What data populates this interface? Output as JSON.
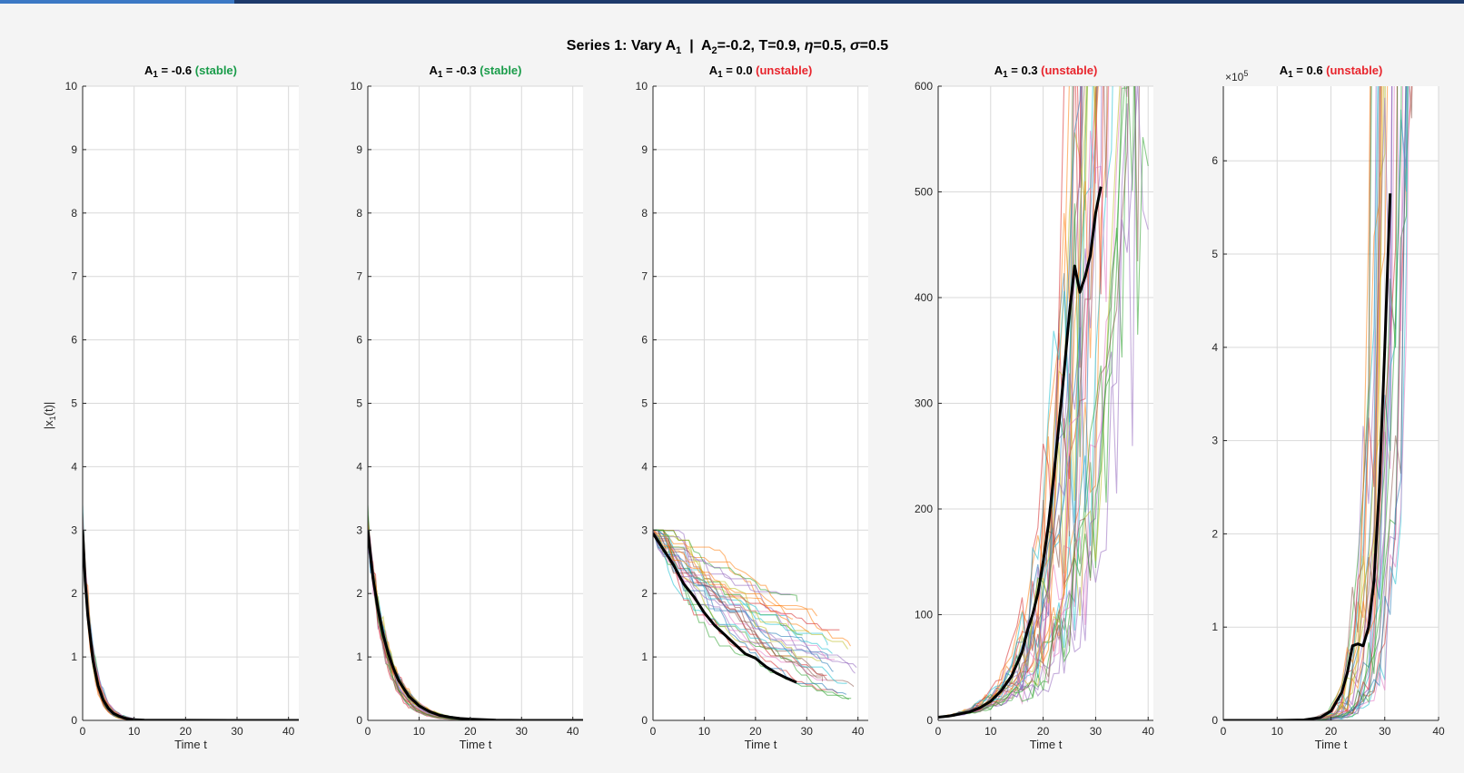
{
  "figure": {
    "title_prefix": "Series 1: Vary A",
    "title_sub": "1",
    "title_sep": "  |  A",
    "title_sub2": "2",
    "title_params": "=-0.2, T=0.9, ",
    "title_eta": "η",
    "title_eta_val": "=0.5, ",
    "title_sigma": "σ",
    "title_sigma_val": "=0.5",
    "ylabel_main": "|x",
    "ylabel_sub": "1",
    "ylabel_end": "(t)|",
    "xlabel": "Time t"
  },
  "colors": {
    "stable": "#1a9c4a",
    "unstable": "#e8242c",
    "mean_line": "#000000",
    "grid": "#d9d9d9",
    "axes": "#262626",
    "palette": [
      "#2ca02c",
      "#ff7f0e",
      "#9467bd",
      "#d62728",
      "#17becf",
      "#1f77b4",
      "#bcbd22",
      "#e377c2",
      "#8c564b"
    ]
  },
  "chart_data": [
    {
      "type": "line",
      "title_value": "-0.6",
      "status": "(stable)",
      "status_kind": "stable",
      "xlim": [
        0,
        42
      ],
      "ylim": [
        0,
        10
      ],
      "xticks": [
        0,
        10,
        20,
        30,
        40
      ],
      "yticks": [
        0,
        1,
        2,
        3,
        4,
        5,
        6,
        7,
        8,
        9,
        10
      ],
      "show_ylabel": true,
      "exponent_label": "",
      "mean": {
        "x": [
          0,
          0.5,
          1,
          2,
          3,
          4,
          5,
          6,
          7,
          8,
          9,
          10,
          12,
          15,
          20,
          30,
          40,
          42
        ],
        "y": [
          3.0,
          2.2,
          1.65,
          0.95,
          0.55,
          0.32,
          0.19,
          0.11,
          0.07,
          0.04,
          0.02,
          0.01,
          0.005,
          0.002,
          0.001,
          0,
          0,
          0
        ]
      }
    },
    {
      "type": "line",
      "title_value": "-0.3",
      "status": "(stable)",
      "status_kind": "stable",
      "xlim": [
        0,
        42
      ],
      "ylim": [
        0,
        10
      ],
      "xticks": [
        0,
        10,
        20,
        30,
        40
      ],
      "yticks": [
        0,
        1,
        2,
        3,
        4,
        5,
        6,
        7,
        8,
        9,
        10
      ],
      "show_ylabel": false,
      "exponent_label": "",
      "mean": {
        "x": [
          0,
          1,
          2,
          3,
          4,
          5,
          6,
          8,
          10,
          12,
          14,
          16,
          18,
          20,
          25,
          30,
          40,
          42
        ],
        "y": [
          3.0,
          2.25,
          1.75,
          1.35,
          1.05,
          0.82,
          0.63,
          0.38,
          0.23,
          0.14,
          0.08,
          0.05,
          0.03,
          0.02,
          0.005,
          0,
          0,
          0
        ]
      }
    },
    {
      "type": "line",
      "title_value": "0.0",
      "status": "(unstable)",
      "status_kind": "unstable",
      "xlim": [
        0,
        42
      ],
      "ylim": [
        0,
        10
      ],
      "xticks": [
        0,
        10,
        20,
        30,
        40
      ],
      "yticks": [
        0,
        1,
        2,
        3,
        4,
        5,
        6,
        7,
        8,
        9,
        10
      ],
      "show_ylabel": false,
      "exponent_label": "",
      "mean": {
        "x": [
          0,
          2,
          4,
          6,
          8,
          10,
          12,
          14,
          16,
          18,
          20,
          22,
          24,
          26,
          28
        ],
        "y": [
          2.95,
          2.7,
          2.45,
          2.15,
          1.95,
          1.7,
          1.5,
          1.35,
          1.2,
          1.05,
          0.98,
          0.85,
          0.75,
          0.67,
          0.6
        ]
      }
    },
    {
      "type": "line",
      "title_value": "0.3",
      "status": "(unstable)",
      "status_kind": "unstable",
      "xlim": [
        0,
        41
      ],
      "ylim": [
        0,
        600
      ],
      "xticks": [
        0,
        10,
        20,
        30,
        40
      ],
      "yticks": [
        0,
        100,
        200,
        300,
        400,
        500,
        600
      ],
      "show_ylabel": false,
      "exponent_label": "",
      "mean": {
        "x": [
          0,
          2,
          4,
          6,
          8,
          10,
          12,
          14,
          16,
          17,
          18,
          19,
          20,
          21,
          22,
          23,
          24,
          25,
          26,
          27,
          28,
          29,
          30,
          31
        ],
        "y": [
          3,
          4,
          6,
          8,
          12,
          18,
          28,
          42,
          65,
          85,
          100,
          120,
          150,
          185,
          230,
          280,
          330,
          385,
          430,
          405,
          420,
          440,
          480,
          505
        ]
      }
    },
    {
      "type": "line",
      "title_value": "0.6",
      "status": "(unstable)",
      "status_kind": "unstable",
      "xlim": [
        0,
        40
      ],
      "ylim": [
        0,
        680000
      ],
      "xticks": [
        0,
        10,
        20,
        30,
        40
      ],
      "yticks": [
        0,
        100000,
        200000,
        300000,
        400000,
        500000,
        600000
      ],
      "ytick_labels": [
        "0",
        "1",
        "2",
        "3",
        "4",
        "5",
        "6"
      ],
      "show_ylabel": false,
      "exponent_label": "×10",
      "exponent_power": "5",
      "mean": {
        "x": [
          0,
          10,
          15,
          18,
          20,
          22,
          23,
          24,
          25,
          26,
          27,
          28,
          29,
          30,
          31
        ],
        "y": [
          0,
          0,
          500,
          3000,
          10000,
          30000,
          50000,
          80000,
          82000,
          80000,
          100000,
          150000,
          250000,
          400000,
          565000
        ]
      }
    }
  ]
}
